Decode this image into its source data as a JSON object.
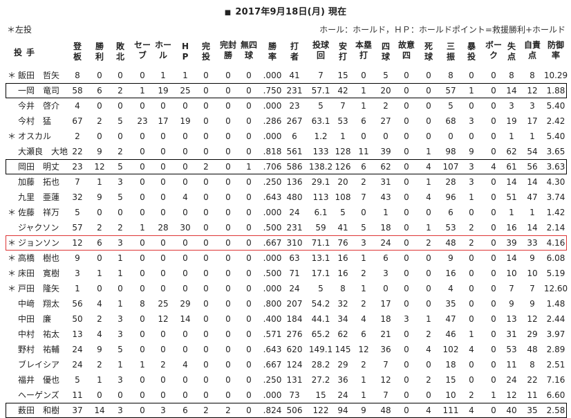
{
  "title": "2017年9月18日(月) 現在",
  "title_square": "■",
  "legend_left": "＊左投",
  "legend_right": "ホール：ホールド，ＨＰ：ホールドポイント=救援勝利+ホールド",
  "header": {
    "name": "投手",
    "columns": [
      "登板",
      "勝利",
      "敗北",
      "セーブ",
      "ホール",
      "HP",
      "完投",
      "完封勝",
      "無四球",
      "勝率",
      "打者",
      "投球回",
      "安打",
      "本塁打",
      "四球",
      "故意四",
      "死球",
      "三振",
      "暴投",
      "ボーク",
      "失点",
      "自責点",
      "防御率"
    ]
  },
  "rows": [
    {
      "lefty": "＊",
      "name": "飯田　哲矢",
      "highlight": "",
      "vals": [
        "8",
        "0",
        "0",
        "0",
        "1",
        "1",
        "0",
        "0",
        "0",
        ".000",
        "41",
        "7",
        "15",
        "0",
        "5",
        "0",
        "0",
        "8",
        "0",
        "0",
        "8",
        "8",
        "10.29"
      ]
    },
    {
      "lefty": "",
      "name": "一岡　竜司",
      "highlight": "black",
      "vals": [
        "58",
        "6",
        "2",
        "1",
        "19",
        "25",
        "0",
        "0",
        "0",
        ".750",
        "231",
        "57.1",
        "42",
        "1",
        "20",
        "0",
        "0",
        "57",
        "1",
        "0",
        "14",
        "12",
        "1.88"
      ]
    },
    {
      "lefty": "",
      "name": "今井　啓介",
      "highlight": "",
      "vals": [
        "4",
        "0",
        "0",
        "0",
        "0",
        "0",
        "0",
        "0",
        "0",
        ".000",
        "23",
        "5",
        "7",
        "1",
        "2",
        "0",
        "0",
        "5",
        "0",
        "0",
        "3",
        "3",
        "5.40"
      ]
    },
    {
      "lefty": "",
      "name": "今村　猛",
      "highlight": "",
      "vals": [
        "67",
        "2",
        "5",
        "23",
        "17",
        "19",
        "0",
        "0",
        "0",
        ".286",
        "267",
        "63.1",
        "53",
        "6",
        "27",
        "0",
        "0",
        "68",
        "3",
        "0",
        "19",
        "17",
        "2.42"
      ]
    },
    {
      "lefty": "＊",
      "name": "オスカル",
      "highlight": "",
      "vals": [
        "2",
        "0",
        "0",
        "0",
        "0",
        "0",
        "0",
        "0",
        "0",
        ".000",
        "6",
        "1.2",
        "1",
        "0",
        "0",
        "0",
        "0",
        "0",
        "0",
        "0",
        "1",
        "1",
        "5.40"
      ]
    },
    {
      "lefty": "",
      "name": "大瀬良　大地",
      "highlight": "",
      "vals": [
        "22",
        "9",
        "2",
        "0",
        "0",
        "0",
        "0",
        "0",
        "0",
        ".818",
        "561",
        "133",
        "128",
        "11",
        "39",
        "0",
        "1",
        "98",
        "9",
        "0",
        "62",
        "54",
        "3.65"
      ]
    },
    {
      "lefty": "",
      "name": "岡田　明丈",
      "highlight": "black",
      "vals": [
        "23",
        "12",
        "5",
        "0",
        "0",
        "0",
        "2",
        "0",
        "1",
        ".706",
        "586",
        "138.2",
        "126",
        "6",
        "62",
        "0",
        "4",
        "107",
        "3",
        "4",
        "61",
        "56",
        "3.63"
      ]
    },
    {
      "lefty": "",
      "name": "加藤　拓也",
      "highlight": "",
      "vals": [
        "7",
        "1",
        "3",
        "0",
        "0",
        "0",
        "0",
        "0",
        "0",
        ".250",
        "136",
        "29.1",
        "20",
        "2",
        "31",
        "0",
        "1",
        "28",
        "3",
        "0",
        "14",
        "14",
        "4.30"
      ]
    },
    {
      "lefty": "",
      "name": "九里　亜蓮",
      "highlight": "",
      "vals": [
        "32",
        "9",
        "5",
        "0",
        "0",
        "4",
        "0",
        "0",
        "0",
        ".643",
        "480",
        "113",
        "108",
        "7",
        "43",
        "0",
        "4",
        "96",
        "1",
        "0",
        "51",
        "47",
        "3.74"
      ]
    },
    {
      "lefty": "＊",
      "name": "佐藤　祥万",
      "highlight": "",
      "vals": [
        "5",
        "0",
        "0",
        "0",
        "0",
        "0",
        "0",
        "0",
        "0",
        ".000",
        "24",
        "6.1",
        "5",
        "0",
        "1",
        "0",
        "0",
        "6",
        "0",
        "0",
        "1",
        "1",
        "1.42"
      ]
    },
    {
      "lefty": "",
      "name": "ジャクソン",
      "highlight": "",
      "vals": [
        "57",
        "2",
        "2",
        "1",
        "28",
        "30",
        "0",
        "0",
        "0",
        ".500",
        "231",
        "59",
        "41",
        "5",
        "18",
        "0",
        "1",
        "53",
        "2",
        "0",
        "16",
        "14",
        "2.14"
      ]
    },
    {
      "lefty": "＊",
      "name": "ジョンソン",
      "highlight": "red",
      "vals": [
        "12",
        "6",
        "3",
        "0",
        "0",
        "0",
        "0",
        "0",
        "0",
        ".667",
        "310",
        "71.1",
        "76",
        "3",
        "24",
        "0",
        "2",
        "48",
        "2",
        "0",
        "39",
        "33",
        "4.16"
      ]
    },
    {
      "lefty": "＊",
      "name": "高橋　樹也",
      "highlight": "",
      "vals": [
        "9",
        "0",
        "1",
        "0",
        "0",
        "0",
        "0",
        "0",
        "0",
        ".000",
        "63",
        "13.1",
        "16",
        "1",
        "6",
        "0",
        "0",
        "9",
        "0",
        "0",
        "14",
        "9",
        "6.08"
      ]
    },
    {
      "lefty": "＊",
      "name": "床田　寛樹",
      "highlight": "",
      "vals": [
        "3",
        "1",
        "1",
        "0",
        "0",
        "0",
        "0",
        "0",
        "0",
        ".500",
        "71",
        "17.1",
        "16",
        "2",
        "3",
        "0",
        "0",
        "16",
        "0",
        "0",
        "10",
        "10",
        "5.19"
      ]
    },
    {
      "lefty": "＊",
      "name": "戸田　隆矢",
      "highlight": "",
      "vals": [
        "1",
        "0",
        "0",
        "0",
        "0",
        "0",
        "0",
        "0",
        "0",
        ".000",
        "24",
        "5",
        "8",
        "1",
        "0",
        "0",
        "0",
        "4",
        "0",
        "0",
        "7",
        "7",
        "12.60"
      ]
    },
    {
      "lefty": "",
      "name": "中﨑　翔太",
      "highlight": "",
      "vals": [
        "56",
        "4",
        "1",
        "8",
        "25",
        "29",
        "0",
        "0",
        "0",
        ".800",
        "207",
        "54.2",
        "32",
        "2",
        "17",
        "0",
        "0",
        "35",
        "0",
        "0",
        "9",
        "9",
        "1.48"
      ]
    },
    {
      "lefty": "",
      "name": "中田　廉",
      "highlight": "",
      "vals": [
        "50",
        "2",
        "3",
        "0",
        "12",
        "14",
        "0",
        "0",
        "0",
        ".400",
        "184",
        "44.1",
        "34",
        "4",
        "18",
        "3",
        "1",
        "47",
        "0",
        "0",
        "13",
        "12",
        "2.44"
      ]
    },
    {
      "lefty": "",
      "name": "中村　祐太",
      "highlight": "",
      "vals": [
        "13",
        "4",
        "3",
        "0",
        "0",
        "0",
        "0",
        "0",
        "0",
        ".571",
        "276",
        "65.2",
        "62",
        "6",
        "21",
        "0",
        "2",
        "46",
        "1",
        "0",
        "31",
        "29",
        "3.97"
      ]
    },
    {
      "lefty": "",
      "name": "野村　祐輔",
      "highlight": "",
      "vals": [
        "24",
        "9",
        "5",
        "0",
        "0",
        "0",
        "0",
        "0",
        "0",
        ".643",
        "620",
        "149.1",
        "145",
        "12",
        "36",
        "0",
        "4",
        "102",
        "4",
        "0",
        "53",
        "48",
        "2.89"
      ]
    },
    {
      "lefty": "",
      "name": "ブレイシア",
      "highlight": "",
      "vals": [
        "24",
        "2",
        "1",
        "1",
        "2",
        "4",
        "0",
        "0",
        "0",
        ".667",
        "124",
        "28.2",
        "29",
        "2",
        "7",
        "0",
        "0",
        "18",
        "0",
        "0",
        "11",
        "8",
        "2.51"
      ]
    },
    {
      "lefty": "",
      "name": "福井　優也",
      "highlight": "",
      "vals": [
        "5",
        "1",
        "3",
        "0",
        "0",
        "0",
        "0",
        "0",
        "0",
        ".250",
        "131",
        "27.2",
        "36",
        "1",
        "12",
        "0",
        "2",
        "15",
        "0",
        "0",
        "24",
        "22",
        "7.16"
      ]
    },
    {
      "lefty": "",
      "name": "ヘーゲンズ",
      "highlight": "",
      "vals": [
        "11",
        "0",
        "0",
        "0",
        "0",
        "0",
        "0",
        "0",
        "0",
        ".000",
        "73",
        "15",
        "24",
        "1",
        "7",
        "0",
        "0",
        "10",
        "2",
        "1",
        "12",
        "11",
        "6.60"
      ]
    },
    {
      "lefty": "",
      "name": "薮田　和樹",
      "highlight": "black",
      "vals": [
        "37",
        "14",
        "3",
        "0",
        "3",
        "6",
        "2",
        "2",
        "0",
        ".824",
        "506",
        "122",
        "94",
        "9",
        "48",
        "0",
        "4",
        "111",
        "4",
        "0",
        "40",
        "35",
        "2.58"
      ]
    }
  ]
}
